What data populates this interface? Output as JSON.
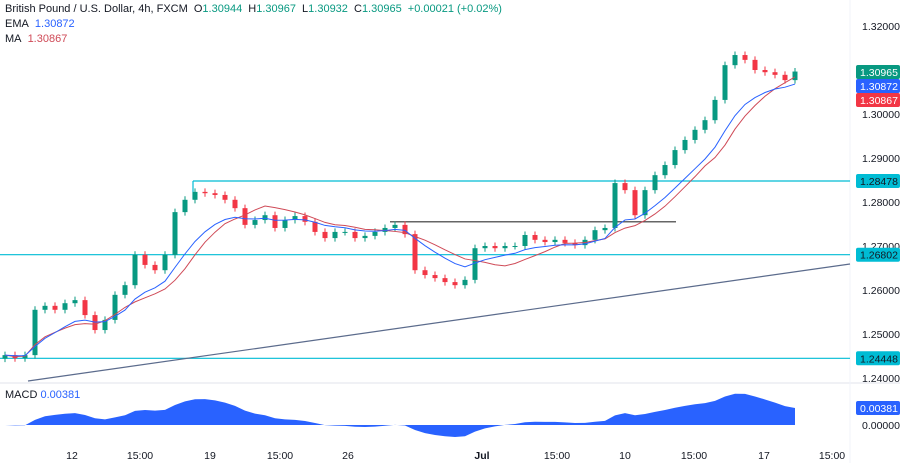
{
  "header": {
    "symbol": "British Pound / U.S. Dollar, 4h, FXCM",
    "open_label": "O",
    "open": "1.30944",
    "high_label": "H",
    "high": "1.30967",
    "low_label": "L",
    "low": "1.30932",
    "close_label": "C",
    "close": "1.30965",
    "change": "+0.00021 (+0.02%)"
  },
  "indicators": {
    "ema_label": "EMA",
    "ema_value": "1.30872",
    "ma_label": "MA",
    "ma_value": "1.30867",
    "macd_label": "MACD",
    "macd_value": "0.00381"
  },
  "colors": {
    "up": "#089981",
    "down": "#f23645",
    "ema": "#2962ff",
    "ma": "#cf4a57",
    "level": "#00bcd4",
    "trend": "#5b6b8c"
  },
  "price_axis": {
    "ticks": [
      "1.32000",
      "1.30000",
      "1.29000",
      "1.28000",
      "1.27000",
      "1.26000",
      "1.25000",
      "1.24000"
    ],
    "tick_values": [
      1.32,
      1.3,
      1.29,
      1.28,
      1.27,
      1.26,
      1.25,
      1.24
    ],
    "range": [
      1.2385,
      1.3265
    ]
  },
  "price_tags": {
    "close": "1.30965",
    "ema": "1.30872",
    "ma": "1.30867",
    "level1": "1.28478",
    "level2": "1.26802",
    "level3": "1.24448"
  },
  "levels": [
    1.28478,
    1.26802,
    1.24448,
    1.2755
  ],
  "macd_axis": {
    "ticks": [
      "0.00000"
    ],
    "tag": "0.00381"
  },
  "time_axis": [
    "12",
    "15:00",
    "19",
    "15:00",
    "26",
    "Jul",
    "15:00",
    "10",
    "15:00",
    "17",
    "15:00"
  ],
  "chart_data": {
    "type": "candlestick",
    "closes": [
      1.2452,
      1.2445,
      1.2452,
      1.2555,
      1.2564,
      1.2555,
      1.257,
      1.2577,
      1.2543,
      1.2509,
      1.2532,
      1.2589,
      1.2611,
      1.268,
      1.2657,
      1.2645,
      1.268,
      1.2777,
      1.2805,
      1.2823,
      1.282,
      1.2816,
      1.2805,
      1.2786,
      1.2748,
      1.2759,
      1.277,
      1.2741,
      1.2759,
      1.2768,
      1.2755,
      1.2732,
      1.2718,
      1.2732,
      1.2732,
      1.2718,
      1.2723,
      1.2732,
      1.2741,
      1.2748,
      1.2727,
      1.2645,
      1.2634,
      1.2627,
      1.2618,
      1.2611,
      1.2623,
      1.2695,
      1.27,
      1.2695,
      1.27,
      1.27,
      1.2725,
      1.2714,
      1.2709,
      1.2714,
      1.2707,
      1.2702,
      1.2714,
      1.2736,
      1.2741,
      1.2843,
      1.2827,
      1.277,
      1.2827,
      1.2861,
      1.2884,
      1.2918,
      1.2941,
      1.2964,
      1.2986,
      1.3032,
      1.3111,
      1.3134,
      1.3123,
      1.31,
      1.3095,
      1.3089,
      1.3077,
      1.30965
    ]
  }
}
